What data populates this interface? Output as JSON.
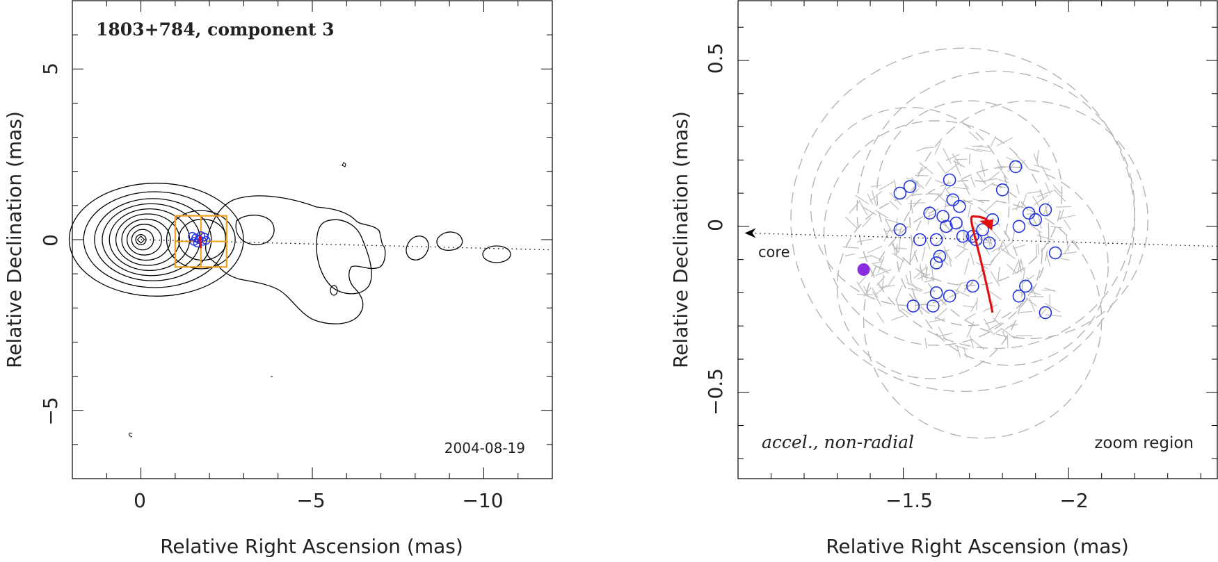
{
  "chart_data": [
    {
      "type": "contour",
      "title": "1803+784, component 3",
      "date": "2004-08-19",
      "xlabel": "Relative Right Ascension (mas)",
      "ylabel": "Relative Declination (mas)",
      "xlim": [
        2,
        -12
      ],
      "ylim": [
        -7,
        7
      ],
      "xticks": [
        0,
        -5,
        -10
      ],
      "xtick_labels": [
        "0",
        "−5",
        "−10"
      ],
      "yticks": [
        5,
        0,
        -5
      ],
      "ytick_labels": [
        "5",
        "0",
        "−5"
      ],
      "core_contour_radii_mas": [
        0.15,
        0.3,
        0.45,
        0.6,
        0.75,
        0.9,
        1.05,
        1.2,
        1.4,
        1.65
      ],
      "zoom_box": {
        "x": [
          -1,
          -2.5
        ],
        "y": [
          0.7,
          -0.8
        ]
      },
      "jet_axis": {
        "from": [
          0,
          0
        ],
        "to": [
          -12,
          -0.3
        ]
      },
      "component_positions": [
        {
          "x": -1.5,
          "y": 0.1
        },
        {
          "x": -1.6,
          "y": 0.05
        },
        {
          "x": -1.7,
          "y": 0.0
        },
        {
          "x": -1.75,
          "y": 0.12
        },
        {
          "x": -1.8,
          "y": -0.05
        },
        {
          "x": -1.65,
          "y": -0.1
        },
        {
          "x": -1.85,
          "y": 0.08
        },
        {
          "x": -1.9,
          "y": -0.02
        },
        {
          "x": -1.55,
          "y": -0.05
        }
      ]
    },
    {
      "type": "scatter",
      "xlabel": "Relative Right Ascension (mas)",
      "ylabel": "Relative Declination (mas)",
      "xlim": [
        -1.0,
        -2.45
      ],
      "ylim": [
        -0.76,
        0.68
      ],
      "xticks": [
        -1.5,
        -2
      ],
      "xtick_labels": [
        "−1.5",
        "−2"
      ],
      "yticks": [
        0.5,
        0,
        -0.5
      ],
      "ytick_labels": [
        "0.5",
        "0",
        "−0.5"
      ],
      "annotation_model": "accel., non-radial",
      "annotation_region": "zoom region",
      "core_label": "core",
      "core_axis": {
        "from": [
          -2.45,
          -0.06
        ],
        "to": [
          -1.02,
          -0.02
        ]
      },
      "fit_track": [
        [
          -1.77,
          -0.26
        ],
        [
          -1.73,
          -0.06
        ],
        [
          -1.71,
          0.03
        ],
        [
          -1.73,
          0.03
        ],
        [
          -1.76,
          0.0
        ]
      ],
      "fit_start": {
        "x": -1.38,
        "y": -0.13
      },
      "component_positions": [
        {
          "x": -1.49,
          "y": 0.1
        },
        {
          "x": -1.52,
          "y": 0.12
        },
        {
          "x": -1.49,
          "y": -0.01
        },
        {
          "x": -1.58,
          "y": 0.04
        },
        {
          "x": -1.64,
          "y": 0.14
        },
        {
          "x": -1.65,
          "y": 0.08
        },
        {
          "x": -1.67,
          "y": 0.06
        },
        {
          "x": -1.62,
          "y": 0.03
        },
        {
          "x": -1.63,
          "y": 0.0
        },
        {
          "x": -1.66,
          "y": 0.01
        },
        {
          "x": -1.6,
          "y": -0.04
        },
        {
          "x": -1.68,
          "y": -0.03
        },
        {
          "x": -1.71,
          "y": -0.03
        },
        {
          "x": -1.72,
          "y": -0.04
        },
        {
          "x": -1.74,
          "y": -0.01
        },
        {
          "x": -1.76,
          "y": -0.05
        },
        {
          "x": -1.77,
          "y": 0.02
        },
        {
          "x": -1.8,
          "y": 0.11
        },
        {
          "x": -1.84,
          "y": 0.18
        },
        {
          "x": -1.85,
          "y": 0.0
        },
        {
          "x": -1.88,
          "y": 0.04
        },
        {
          "x": -1.9,
          "y": 0.02
        },
        {
          "x": -1.93,
          "y": 0.05
        },
        {
          "x": -1.96,
          "y": -0.08
        },
        {
          "x": -1.87,
          "y": -0.18
        },
        {
          "x": -1.85,
          "y": -0.21
        },
        {
          "x": -1.93,
          "y": -0.26
        },
        {
          "x": -1.71,
          "y": -0.18
        },
        {
          "x": -1.64,
          "y": -0.21
        },
        {
          "x": -1.6,
          "y": -0.2
        },
        {
          "x": -1.59,
          "y": -0.24
        },
        {
          "x": -1.53,
          "y": -0.24
        },
        {
          "x": -1.61,
          "y": -0.09
        },
        {
          "x": -1.6,
          "y": -0.11
        },
        {
          "x": -1.55,
          "y": -0.04
        }
      ]
    }
  ]
}
